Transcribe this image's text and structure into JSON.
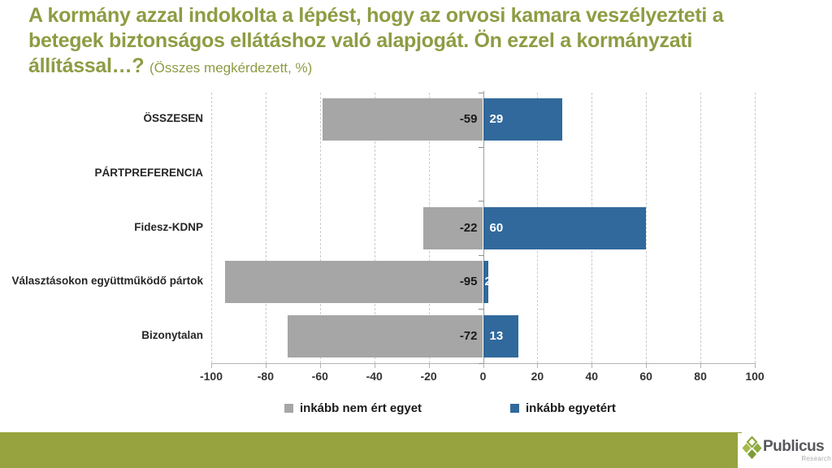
{
  "header": {
    "lines": [
      "A kormány azzal indokolta a lépést, hogy az orvosi kamara veszélyezteti a",
      "betegek biztonságos ellátáshoz való alapjogát. Ön ezzel a kormányzati",
      "állítással…?"
    ],
    "subtitle": "(Összes megkérdezett, %)",
    "title_color": "#8e9c43"
  },
  "chart_data": {
    "type": "bar",
    "orientation": "horizontal-diverging",
    "categories": [
      "ÖSSZESEN",
      "PÁRTPREFERENCIA",
      "Fidesz-KDNP",
      "Választásokon együttműködő pártok",
      "Bizonytalan"
    ],
    "series": [
      {
        "name": "inkább nem ért egyet",
        "color": "#a6a6a6",
        "values": [
          -59,
          null,
          -22,
          -95,
          -72
        ]
      },
      {
        "name": "inkább egyetért",
        "color": "#31699c",
        "values": [
          29,
          null,
          60,
          2,
          13
        ]
      }
    ],
    "xlim": [
      -100,
      100
    ],
    "xticks": [
      -100,
      -80,
      -60,
      -40,
      -20,
      0,
      20,
      40,
      60,
      80,
      100
    ],
    "grid": "vertical-dashed",
    "zero_line": true,
    "value_labels": "inside-end",
    "legend_position": "bottom"
  },
  "colors": {
    "grid_dashed": "#cbcbcb",
    "zero_line": "#9e9e9e",
    "axis": "#b3b3b3",
    "tick_text": "#333333",
    "category_text": "#262626",
    "label_negative": "#1a1a1a",
    "label_positive": "#ffffff",
    "footer_bar": "#97a33e"
  },
  "footer": {
    "brand": "Publicus",
    "brand_sub": "Research"
  }
}
